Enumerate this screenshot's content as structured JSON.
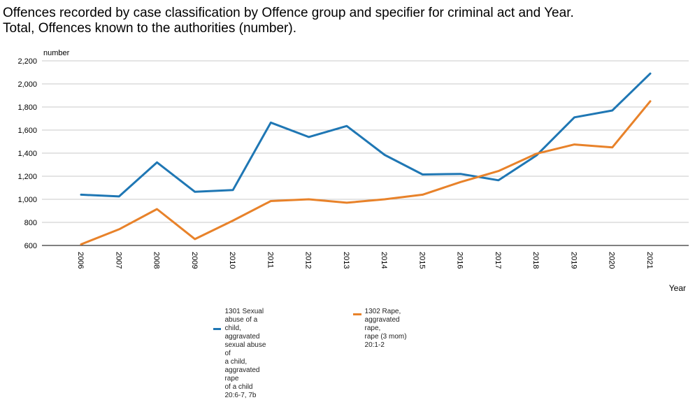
{
  "title_lines": [
    "Offences recorded by case classification by Offence group and specifier for criminal act and Year.",
    "Total, Offences known to the authorities (number)."
  ],
  "colors": {
    "series1": "#1f77b4",
    "series2": "#e8822a",
    "grid": "#c8c8c8",
    "axis": "#000000"
  },
  "chart_data": {
    "type": "line",
    "title": "Offences recorded by case classification by Offence group and specifier for criminal act and Year. Total, Offences known to the authorities (number).",
    "ylabel": "number",
    "xlabel": "Year",
    "ylim": [
      600,
      2200
    ],
    "yticks": [
      600,
      800,
      1000,
      1200,
      1400,
      1600,
      1800,
      2000,
      2200
    ],
    "ytick_labels": [
      "600",
      "800",
      "1,000",
      "1,200",
      "1,400",
      "1,600",
      "1,800",
      "2,000",
      "2,200"
    ],
    "x": [
      "2006",
      "2007",
      "2008",
      "2009",
      "2010",
      "2011",
      "2012",
      "2013",
      "2014",
      "2015",
      "2016",
      "2017",
      "2018",
      "2019",
      "2020",
      "2021"
    ],
    "legend_position": "bottom",
    "series": [
      {
        "name": "1301 Sexual abuse of a child, aggravated sexual abuse of a child, aggravated rape of a child 20:6-7, 7b",
        "legend_text": "1301 Sexual abuse of a child,\naggravated sexual abuse of\na child, aggravated rape\nof a child 20:6-7, 7b",
        "color": "#1f77b4",
        "values": [
          1040,
          1025,
          1320,
          1065,
          1080,
          1665,
          1540,
          1635,
          1385,
          1215,
          1220,
          1165,
          1380,
          1710,
          1770,
          2090
        ]
      },
      {
        "name": "1302 Rape, aggravated rape, rape (3 mom) 20:1-2",
        "legend_text": "1302 Rape, aggravated rape,\nrape (3 mom) 20:1-2",
        "color": "#e8822a",
        "values": [
          610,
          740,
          915,
          655,
          815,
          985,
          1000,
          970,
          1000,
          1040,
          1150,
          1245,
          1395,
          1475,
          1450,
          1850
        ]
      }
    ]
  }
}
